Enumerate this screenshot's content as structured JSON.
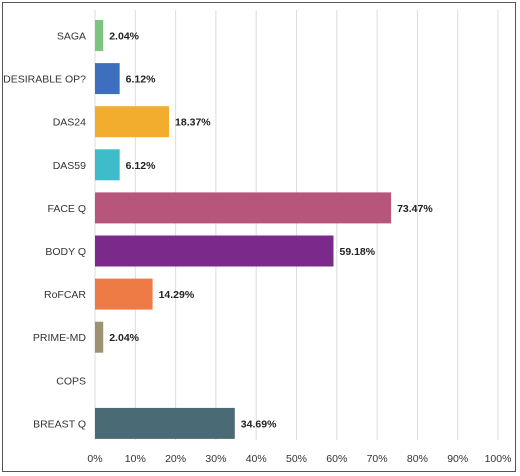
{
  "chart_data": {
    "type": "bar",
    "orientation": "horizontal",
    "categories": [
      "SAGA",
      "DESIRABLE OP?",
      "DAS24",
      "DAS59",
      "FACE Q",
      "BODY Q",
      "RoFCAR",
      "PRIME-MD",
      "COPS",
      "BREAST Q"
    ],
    "values": [
      2.04,
      6.12,
      18.37,
      6.12,
      73.47,
      59.18,
      14.29,
      2.04,
      0,
      34.69
    ],
    "value_labels": [
      "2.04%",
      "6.12%",
      "18.37%",
      "6.12%",
      "73.47%",
      "59.18%",
      "14.29%",
      "2.04%",
      "",
      "34.69%"
    ],
    "colors": [
      "#7cc47f",
      "#3e6fbf",
      "#f2ad2f",
      "#3fbcc9",
      "#b8557a",
      "#7b2a8c",
      "#ee7a45",
      "#9c9273",
      "#ffffff",
      "#4a6b75"
    ],
    "xlim": [
      0,
      100
    ],
    "xticks": [
      "0%",
      "10%",
      "20%",
      "30%",
      "40%",
      "50%",
      "60%",
      "70%",
      "80%",
      "90%",
      "100%"
    ],
    "grid": true,
    "title": "",
    "xlabel": "",
    "ylabel": ""
  }
}
